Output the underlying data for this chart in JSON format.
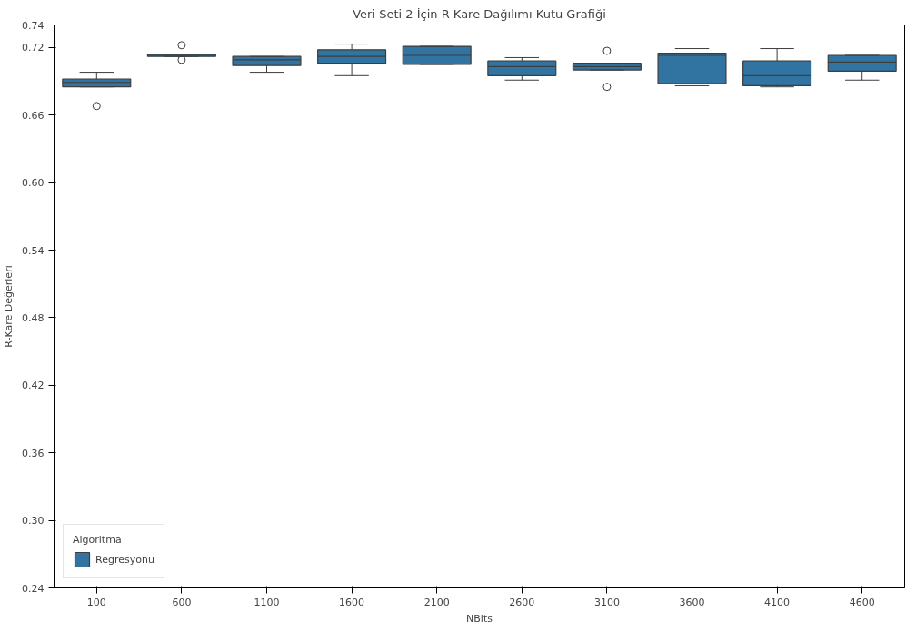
{
  "chart_data": {
    "type": "box",
    "title": "Veri Seti 2 İçin R-Kare Dağılımı Kutu Grafiği",
    "xlabel": "NBits",
    "ylabel": "R-Kare Değerleri",
    "legend_title": "Algoritma",
    "categories": [
      "100",
      "600",
      "1100",
      "1600",
      "2100",
      "2600",
      "3100",
      "3600",
      "4100",
      "4600"
    ],
    "ylim": [
      0.24,
      0.74
    ],
    "yticks": [
      0.24,
      {
        "value": 0.3,
        "label": "0.30"
      },
      0.36,
      0.42,
      0.48,
      0.54,
      {
        "value": 0.6,
        "label": "0.60"
      },
      0.66,
      0.72,
      0.74
    ],
    "grid": false,
    "legend": "bottom left",
    "series": [
      {
        "name": "Regresyonu",
        "color": "#3274a1",
        "boxes": [
          {
            "low": 0.685,
            "q1": 0.685,
            "median": 0.689,
            "q3": 0.692,
            "high": 0.698,
            "outliers": [
              0.668
            ]
          },
          {
            "low": 0.712,
            "q1": 0.712,
            "median": 0.713,
            "q3": 0.714,
            "high": 0.714,
            "outliers": [
              0.722,
              0.709
            ]
          },
          {
            "low": 0.698,
            "q1": 0.704,
            "median": 0.709,
            "q3": 0.712,
            "high": 0.712
          },
          {
            "low": 0.695,
            "q1": 0.706,
            "median": 0.712,
            "q3": 0.718,
            "high": 0.723
          },
          {
            "low": 0.705,
            "q1": 0.705,
            "median": 0.713,
            "q3": 0.721,
            "high": 0.721
          },
          {
            "low": 0.691,
            "q1": 0.695,
            "median": 0.703,
            "q3": 0.708,
            "high": 0.711
          },
          {
            "low": 0.7,
            "q1": 0.7,
            "median": 0.703,
            "q3": 0.706,
            "high": 0.706,
            "outliers": [
              0.717,
              0.685
            ]
          },
          {
            "low": 0.686,
            "q1": 0.688,
            "median": 0.713,
            "q3": 0.715,
            "high": 0.719
          },
          {
            "low": 0.685,
            "q1": 0.686,
            "median": 0.695,
            "q3": 0.708,
            "high": 0.719
          },
          {
            "low": 0.691,
            "q1": 0.699,
            "median": 0.707,
            "q3": 0.713,
            "high": 0.713
          }
        ]
      }
    ]
  }
}
